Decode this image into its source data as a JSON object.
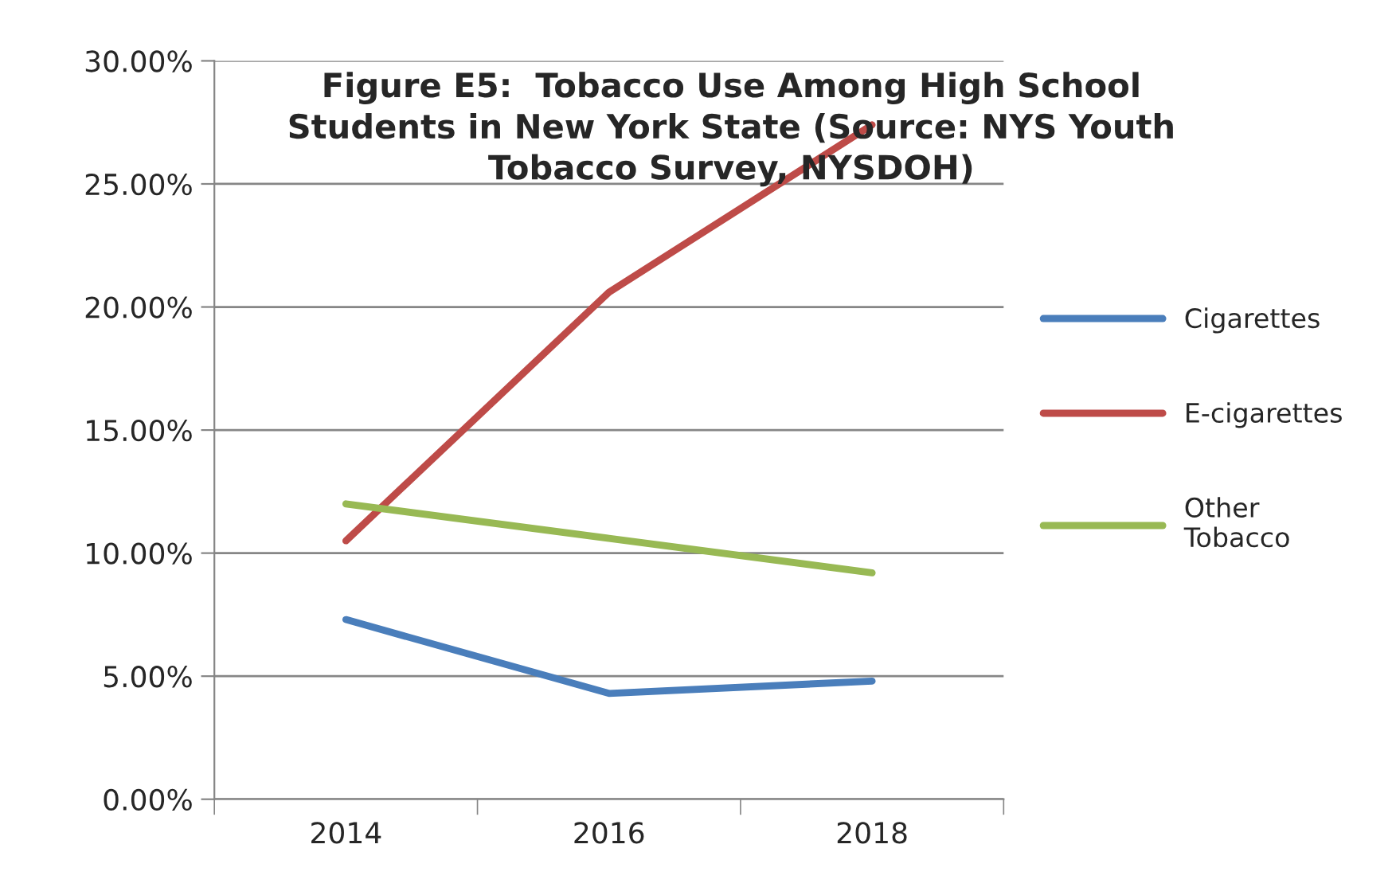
{
  "chart_data": {
    "type": "line",
    "title": "Figure E5:  Tobacco Use Among High School\nStudents in New York State (Source: NYS Youth\nTobacco Survey, NYSDOH)",
    "categories": [
      "2014",
      "2016",
      "2018"
    ],
    "series": [
      {
        "name": "Cigarettes",
        "color": "#4a7ebb",
        "values": [
          7.3,
          4.3,
          4.8
        ]
      },
      {
        "name": "E-cigarettes",
        "color": "#be4b48",
        "values": [
          10.5,
          20.6,
          27.4
        ]
      },
      {
        "name": "Other\nTobacco",
        "color": "#98b954",
        "values": [
          12.0,
          10.6,
          9.2
        ]
      }
    ],
    "ylim": [
      0,
      30
    ],
    "yticks": [
      {
        "value": 0,
        "label": "0.00%"
      },
      {
        "value": 5,
        "label": "5.00%"
      },
      {
        "value": 10,
        "label": "10.00%"
      },
      {
        "value": 15,
        "label": "15.00%"
      },
      {
        "value": 20,
        "label": "20.00%"
      },
      {
        "value": 25,
        "label": "25.00%"
      },
      {
        "value": 30,
        "label": "30.00%"
      }
    ],
    "grid": "y",
    "legend": "right",
    "marker": "none",
    "line_style": "solid"
  }
}
